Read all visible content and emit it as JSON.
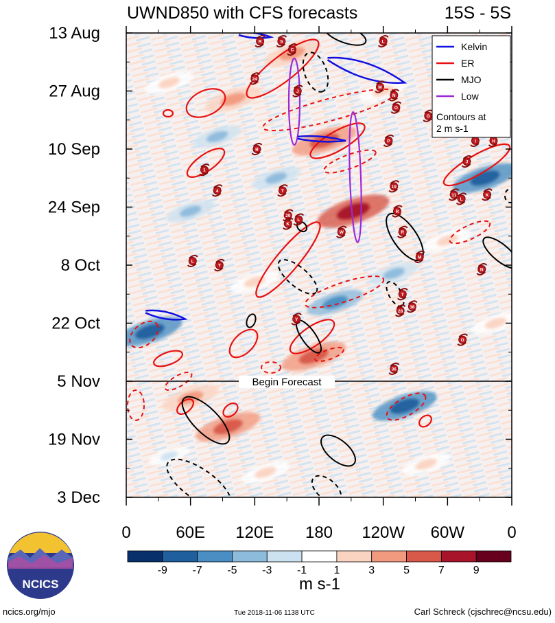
{
  "chart_data": {
    "type": "heatmap",
    "title": "UWND850 with CFS forecasts",
    "region": "15S - 5S",
    "x_ticks": [
      {
        "label": "0",
        "lon": 0
      },
      {
        "label": "60E",
        "lon": 60
      },
      {
        "label": "120E",
        "lon": 120
      },
      {
        "label": "180",
        "lon": 180
      },
      {
        "label": "120W",
        "lon": 240
      },
      {
        "label": "60W",
        "lon": 300
      },
      {
        "label": "0",
        "lon": 360
      }
    ],
    "x_range": [
      0,
      360
    ],
    "y_ticks": [
      {
        "label": "13 Aug",
        "day": 0
      },
      {
        "label": "27 Aug",
        "day": 14
      },
      {
        "label": "10 Sep",
        "day": 28
      },
      {
        "label": "24 Sep",
        "day": 42
      },
      {
        "label": "8 Oct",
        "day": 56
      },
      {
        "label": "22 Oct",
        "day": 70
      },
      {
        "label": "5 Nov",
        "day": 84
      },
      {
        "label": "19 Nov",
        "day": 98
      },
      {
        "label": "3 Dec",
        "day": 112
      }
    ],
    "y_range": [
      0,
      112
    ],
    "forecast_start_day": 84,
    "forecast_label": "Begin Forecast",
    "colorbar": {
      "labels": [
        "-9",
        "-7",
        "-5",
        "-3",
        "-1",
        "1",
        "3",
        "5",
        "7",
        "9"
      ],
      "colors": [
        "#08306b",
        "#1f5f9e",
        "#4a8ec3",
        "#8dbbdc",
        "#cde2f0",
        "#ffffff",
        "#fbd3c1",
        "#f29a80",
        "#d8584a",
        "#a8142a",
        "#67001f"
      ],
      "units": "m s-1"
    },
    "legend": {
      "items": [
        {
          "label": "Kelvin",
          "color": "#1010e0",
          "dashed": false
        },
        {
          "label": "ER",
          "color": "#e81010",
          "dashed": false
        },
        {
          "label": "MJO",
          "color": "#000000",
          "dashed": false
        },
        {
          "label": "Low",
          "color": "#9a2ad8",
          "dashed": false
        }
      ],
      "note_line1": "Contours at",
      "note_line2": "2 m s-1",
      "placement": "top-right"
    },
    "anomaly_blobs": [
      {
        "lon": 155,
        "day": 5,
        "value": 5
      },
      {
        "lon": 240,
        "day": 14,
        "value": 3
      },
      {
        "lon": 185,
        "day": 26,
        "value": 7
      },
      {
        "lon": 212,
        "day": 43,
        "value": 9
      },
      {
        "lon": 100,
        "day": 16,
        "value": 5
      },
      {
        "lon": 40,
        "day": 12,
        "value": 3
      },
      {
        "lon": 300,
        "day": 50,
        "value": 3
      },
      {
        "lon": 335,
        "day": 35,
        "value": -7
      },
      {
        "lon": 22,
        "day": 72,
        "value": -7
      },
      {
        "lon": 195,
        "day": 65,
        "value": -5
      },
      {
        "lon": 85,
        "day": 25,
        "value": -3
      },
      {
        "lon": 60,
        "day": 43,
        "value": -3
      },
      {
        "lon": 175,
        "day": 78,
        "value": 7
      },
      {
        "lon": 260,
        "day": 90,
        "value": -7
      },
      {
        "lon": 310,
        "day": 12,
        "value": -3
      },
      {
        "lon": 140,
        "day": 35,
        "value": -3
      },
      {
        "lon": 120,
        "day": 60,
        "value": 3
      },
      {
        "lon": 60,
        "day": 88,
        "value": 5
      },
      {
        "lon": 95,
        "day": 95,
        "value": 7
      },
      {
        "lon": 250,
        "day": 58,
        "value": -3
      },
      {
        "lon": 345,
        "day": 70,
        "value": 3
      },
      {
        "lon": 280,
        "day": 104,
        "value": 3
      },
      {
        "lon": 40,
        "day": 102,
        "value": -1
      },
      {
        "lon": 130,
        "day": 106,
        "value": 3
      }
    ],
    "storm_markers": [
      {
        "label": "R",
        "lon": 125,
        "day": 2
      },
      {
        "label": "S",
        "lon": 145,
        "day": 2
      },
      {
        "label": "C",
        "lon": 155,
        "day": 4
      },
      {
        "label": "L",
        "lon": 240,
        "day": 2
      },
      {
        "label": "24",
        "lon": 120,
        "day": 11
      },
      {
        "label": "J",
        "lon": 160,
        "day": 14
      },
      {
        "label": "M",
        "lon": 237,
        "day": 13
      },
      {
        "label": "N",
        "lon": 250,
        "day": 15
      },
      {
        "label": "O",
        "lon": 252,
        "day": 18
      },
      {
        "label": "G",
        "lon": 282,
        "day": 20
      },
      {
        "label": "P",
        "lon": 245,
        "day": 26
      },
      {
        "label": "I",
        "lon": 326,
        "day": 26
      },
      {
        "label": "H",
        "lon": 343,
        "day": 26
      },
      {
        "label": "B",
        "lon": 122,
        "day": 28
      },
      {
        "label": "J",
        "lon": 318,
        "day": 31
      },
      {
        "label": "1",
        "lon": 73,
        "day": 33
      },
      {
        "label": "19",
        "lon": 250,
        "day": 37
      },
      {
        "label": "T",
        "lon": 146,
        "day": 38
      },
      {
        "label": "4",
        "lon": 85,
        "day": 38
      },
      {
        "label": "11",
        "lon": 306,
        "day": 39
      },
      {
        "label": "L",
        "lon": 313,
        "day": 40
      },
      {
        "label": "K",
        "lon": 337,
        "day": 39
      },
      {
        "label": "R",
        "lon": 253,
        "day": 43
      },
      {
        "label": "29",
        "lon": 151,
        "day": 44
      },
      {
        "label": "L",
        "lon": 161,
        "day": 45
      },
      {
        "label": "K",
        "lon": 151,
        "day": 46
      },
      {
        "label": "W",
        "lon": 201,
        "day": 48
      },
      {
        "label": "R",
        "lon": 258,
        "day": 48
      },
      {
        "label": "L",
        "lon": 62,
        "day": 55
      },
      {
        "label": "T",
        "lon": 87,
        "day": 56
      },
      {
        "label": "M",
        "lon": 274,
        "day": 54
      },
      {
        "label": "N",
        "lon": 332,
        "day": 57
      },
      {
        "label": "T",
        "lon": 258,
        "day": 63
      },
      {
        "label": "28",
        "lon": 256,
        "day": 67
      },
      {
        "label": "38",
        "lon": 267,
        "day": 66
      },
      {
        "label": "Y",
        "lon": 159,
        "day": 69
      },
      {
        "label": "O",
        "lon": 314,
        "day": 74
      },
      {
        "label": "36",
        "lon": 250,
        "day": 81
      }
    ],
    "kelvin_waves": [
      {
        "lon_start": 105,
        "day_start": 0,
        "lon_end": 135,
        "day_end": 1
      },
      {
        "lon_start": 188,
        "day_start": 6,
        "lon_end": 260,
        "day_end": 12
      },
      {
        "lon_start": 160,
        "day_start": 25,
        "lon_end": 205,
        "day_end": 26
      },
      {
        "lon_start": 18,
        "day_start": 67,
        "lon_end": 55,
        "day_end": 69
      }
    ]
  },
  "footer": {
    "logo_text": "NCICS",
    "url": "ncics.org/mjo",
    "timestamp": "Tue 2018-11-06 1138 UTC",
    "author": "Carl Schreck (cjschrec@ncsu.edu)"
  }
}
